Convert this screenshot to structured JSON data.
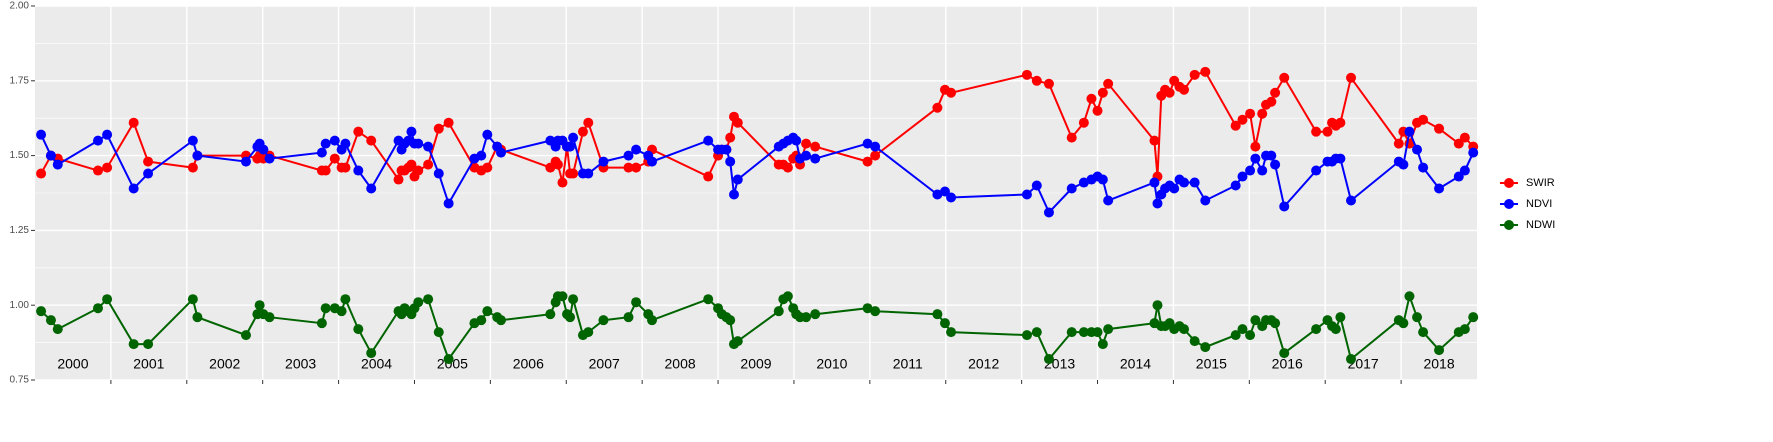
{
  "chart_data": {
    "type": "line",
    "x": [
      2000.08,
      2000.21,
      2000.3,
      2000.83,
      2000.95,
      2001.3,
      2001.49,
      2002.08,
      2002.14,
      2002.78,
      2002.93,
      2002.96,
      2003.01,
      2003.09,
      2003.78,
      2003.83,
      2003.95,
      2004.04,
      2004.09,
      2004.26,
      2004.43,
      2004.79,
      2004.83,
      2004.87,
      2004.92,
      2004.96,
      2005.0,
      2005.05,
      2005.18,
      2005.32,
      2005.45,
      2005.79,
      2005.88,
      2005.96,
      2006.09,
      2006.14,
      2006.79,
      2006.86,
      2006.89,
      2006.95,
      2007.01,
      2007.05,
      2007.09,
      2007.22,
      2007.29,
      2007.49,
      2007.82,
      2007.92,
      2008.08,
      2008.13,
      2008.87,
      2009.0,
      2009.05,
      2009.11,
      2009.16,
      2009.21,
      2009.26,
      2009.8,
      2009.86,
      2009.92,
      2009.99,
      2010.03,
      2010.08,
      2010.16,
      2010.28,
      2010.97,
      2011.07,
      2011.89,
      2011.99,
      2012.07,
      2013.07,
      2013.2,
      2013.36,
      2013.66,
      2013.82,
      2013.92,
      2014.0,
      2014.07,
      2014.14,
      2014.75,
      2014.79,
      2014.84,
      2014.89,
      2014.95,
      2015.01,
      2015.08,
      2015.14,
      2015.28,
      2015.42,
      2015.82,
      2015.91,
      2016.01,
      2016.08,
      2016.17,
      2016.22,
      2016.29,
      2016.34,
      2016.46,
      2016.88,
      2017.03,
      2017.09,
      2017.14,
      2017.2,
      2017.34,
      2017.97,
      2018.03,
      2018.11,
      2018.21,
      2018.29,
      2018.5,
      2018.76,
      2018.84,
      2018.95
    ],
    "series": [
      {
        "name": "SWIR",
        "color": "#ff0000",
        "values": [
          1.44,
          1.5,
          1.49,
          1.45,
          1.46,
          1.61,
          1.48,
          1.46,
          1.5,
          1.5,
          1.49,
          1.5,
          1.49,
          1.5,
          1.45,
          1.45,
          1.49,
          1.46,
          1.46,
          1.58,
          1.55,
          1.42,
          1.45,
          1.45,
          1.46,
          1.47,
          1.43,
          1.45,
          1.47,
          1.59,
          1.61,
          1.46,
          1.45,
          1.46,
          1.53,
          1.52,
          1.46,
          1.48,
          1.47,
          1.41,
          1.53,
          1.44,
          1.44,
          1.58,
          1.61,
          1.46,
          1.46,
          1.46,
          1.48,
          1.52,
          1.43,
          1.5,
          1.52,
          1.52,
          1.56,
          1.63,
          1.61,
          1.47,
          1.47,
          1.46,
          1.49,
          1.5,
          1.47,
          1.54,
          1.53,
          1.48,
          1.5,
          1.66,
          1.72,
          1.71,
          1.77,
          1.75,
          1.74,
          1.56,
          1.61,
          1.69,
          1.65,
          1.71,
          1.74,
          1.55,
          1.43,
          1.7,
          1.72,
          1.71,
          1.75,
          1.73,
          1.72,
          1.77,
          1.78,
          1.6,
          1.62,
          1.64,
          1.53,
          1.64,
          1.67,
          1.68,
          1.71,
          1.76,
          1.58,
          1.58,
          1.61,
          1.6,
          1.61,
          1.76,
          1.54,
          1.58,
          1.54,
          1.61,
          1.62,
          1.59,
          1.54,
          1.56,
          1.53
        ]
      },
      {
        "name": "NDVI",
        "color": "#0000ff",
        "values": [
          1.57,
          1.5,
          1.47,
          1.55,
          1.57,
          1.39,
          1.44,
          1.55,
          1.5,
          1.48,
          1.53,
          1.54,
          1.52,
          1.49,
          1.51,
          1.54,
          1.55,
          1.52,
          1.54,
          1.45,
          1.39,
          1.55,
          1.52,
          1.54,
          1.55,
          1.58,
          1.54,
          1.54,
          1.53,
          1.44,
          1.34,
          1.49,
          1.5,
          1.57,
          1.53,
          1.51,
          1.55,
          1.53,
          1.55,
          1.55,
          1.53,
          1.53,
          1.56,
          1.44,
          1.44,
          1.48,
          1.5,
          1.52,
          1.5,
          1.48,
          1.55,
          1.52,
          1.52,
          1.52,
          1.48,
          1.37,
          1.42,
          1.53,
          1.54,
          1.55,
          1.56,
          1.55,
          1.49,
          1.5,
          1.49,
          1.54,
          1.53,
          1.37,
          1.38,
          1.36,
          1.37,
          1.4,
          1.31,
          1.39,
          1.41,
          1.42,
          1.43,
          1.42,
          1.35,
          1.41,
          1.34,
          1.37,
          1.39,
          1.4,
          1.39,
          1.42,
          1.41,
          1.41,
          1.35,
          1.4,
          1.43,
          1.45,
          1.49,
          1.45,
          1.5,
          1.5,
          1.47,
          1.33,
          1.45,
          1.48,
          1.48,
          1.49,
          1.49,
          1.35,
          1.48,
          1.47,
          1.58,
          1.52,
          1.46,
          1.39,
          1.43,
          1.45,
          1.51
        ]
      },
      {
        "name": "NDWI",
        "color": "#006400",
        "values": [
          0.98,
          0.95,
          0.92,
          0.99,
          1.02,
          0.87,
          0.87,
          1.02,
          0.96,
          0.9,
          0.97,
          1.0,
          0.97,
          0.96,
          0.94,
          0.99,
          0.99,
          0.98,
          1.02,
          0.92,
          0.84,
          0.98,
          0.97,
          0.99,
          0.98,
          0.97,
          0.99,
          1.01,
          1.02,
          0.91,
          0.82,
          0.94,
          0.95,
          0.98,
          0.96,
          0.95,
          0.97,
          1.01,
          1.03,
          1.03,
          0.97,
          0.96,
          1.02,
          0.9,
          0.91,
          0.95,
          0.96,
          1.01,
          0.97,
          0.95,
          1.02,
          0.99,
          0.97,
          0.96,
          0.95,
          0.87,
          0.88,
          0.98,
          1.02,
          1.03,
          0.99,
          0.97,
          0.96,
          0.96,
          0.97,
          0.99,
          0.98,
          0.97,
          0.94,
          0.91,
          0.9,
          0.91,
          0.82,
          0.91,
          0.91,
          0.91,
          0.91,
          0.87,
          0.92,
          0.94,
          1.0,
          0.93,
          0.93,
          0.94,
          0.92,
          0.93,
          0.92,
          0.88,
          0.86,
          0.9,
          0.92,
          0.9,
          0.95,
          0.93,
          0.95,
          0.95,
          0.94,
          0.84,
          0.92,
          0.95,
          0.93,
          0.92,
          0.96,
          0.82,
          0.95,
          0.94,
          1.03,
          0.96,
          0.91,
          0.85,
          0.91,
          0.92,
          0.96
        ]
      }
    ],
    "xlim": [
      2000,
      2019
    ],
    "xticks": [
      2001,
      2002,
      2003,
      2004,
      2005,
      2006,
      2007,
      2008,
      2009,
      2010,
      2011,
      2012,
      2013,
      2014,
      2015,
      2016,
      2017,
      2018
    ],
    "ylim": [
      0.75,
      2.0
    ],
    "yticks": [
      {
        "value": 0.75,
        "label": "0.75"
      },
      {
        "value": 1.0,
        "label": "1.00"
      },
      {
        "value": 1.25,
        "label": "1.25"
      },
      {
        "value": 1.5,
        "label": "1.50"
      },
      {
        "value": 1.75,
        "label": "1.75"
      },
      {
        "value": 2.0,
        "label": "2.00"
      }
    ],
    "annotations": [
      {
        "x": 2000.5,
        "y": 0.8,
        "text": "2000"
      },
      {
        "x": 2001.5,
        "y": 0.8,
        "text": "2001"
      },
      {
        "x": 2002.5,
        "y": 0.8,
        "text": "2002"
      },
      {
        "x": 2003.5,
        "y": 0.8,
        "text": "2003"
      },
      {
        "x": 2004.5,
        "y": 0.8,
        "text": "2004"
      },
      {
        "x": 2005.5,
        "y": 0.8,
        "text": "2005"
      },
      {
        "x": 2006.5,
        "y": 0.8,
        "text": "2006"
      },
      {
        "x": 2007.5,
        "y": 0.8,
        "text": "2007"
      },
      {
        "x": 2008.5,
        "y": 0.8,
        "text": "2008"
      },
      {
        "x": 2009.5,
        "y": 0.8,
        "text": "2009"
      },
      {
        "x": 2010.5,
        "y": 0.8,
        "text": "2010"
      },
      {
        "x": 2011.5,
        "y": 0.8,
        "text": "2011"
      },
      {
        "x": 2012.5,
        "y": 0.8,
        "text": "2012"
      },
      {
        "x": 2013.5,
        "y": 0.8,
        "text": "2013"
      },
      {
        "x": 2014.5,
        "y": 0.8,
        "text": "2014"
      },
      {
        "x": 2015.5,
        "y": 0.8,
        "text": "2015"
      },
      {
        "x": 2016.5,
        "y": 0.8,
        "text": "2016"
      },
      {
        "x": 2017.5,
        "y": 0.8,
        "text": "2017"
      },
      {
        "x": 2018.5,
        "y": 0.8,
        "text": "2018"
      }
    ],
    "grid": true,
    "legend": "right"
  }
}
